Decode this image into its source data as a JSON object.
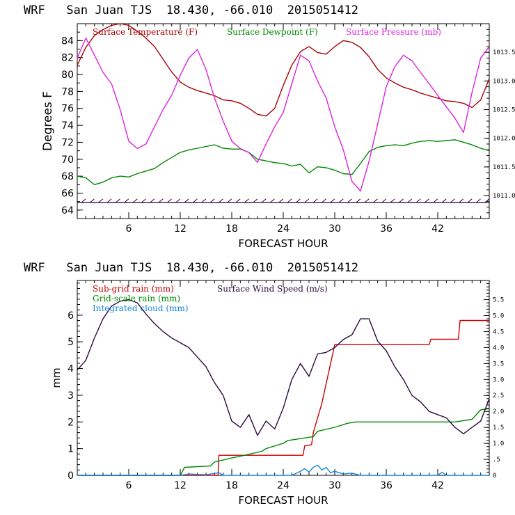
{
  "chart_data": [
    {
      "type": "line",
      "title": "WRF   San Juan TJS  18.430, -66.010  2015051412",
      "xlabel": "FORECAST HOUR",
      "ylabel": "Degrees F",
      "xlim": [
        0,
        48
      ],
      "ylim": [
        63,
        86
      ],
      "y2lim": [
        1010.6,
        1014.0
      ],
      "xticks": [
        6,
        12,
        18,
        24,
        30,
        36,
        42
      ],
      "yticks": [
        64,
        66,
        68,
        70,
        72,
        74,
        76,
        78,
        80,
        82,
        84
      ],
      "y2ticks": [
        "1011.0",
        "1011.5",
        "1012.0",
        "1012.5",
        "1013.0",
        "1013.5"
      ],
      "y2tick_values": [
        1011.0,
        1011.5,
        1012.0,
        1012.5,
        1013.0,
        1013.5
      ],
      "legend_position": "top",
      "grid": false,
      "series": [
        {
          "name": "Surface Temperature (F)",
          "color": "#aa0000",
          "axis": "left",
          "x": [
            0,
            1,
            2,
            3,
            4,
            5,
            6,
            7,
            8,
            9,
            10,
            11,
            12,
            13,
            14,
            15,
            16,
            17,
            18,
            19,
            20,
            21,
            22,
            23,
            24,
            25,
            26,
            27,
            28,
            29,
            30,
            31,
            32,
            33,
            34,
            35,
            36,
            37,
            38,
            39,
            40,
            41,
            42,
            43,
            44,
            45,
            46,
            47,
            48
          ],
          "values": [
            81.1,
            83.2,
            84.6,
            85.3,
            85.8,
            86.0,
            85.8,
            85.1,
            84.3,
            83.3,
            81.8,
            80.3,
            79.1,
            78.5,
            78.1,
            77.8,
            77.5,
            77.0,
            76.9,
            76.6,
            76.0,
            75.3,
            75.1,
            76.0,
            78.7,
            81.1,
            82.7,
            83.3,
            82.6,
            82.4,
            83.3,
            84.0,
            83.8,
            83.2,
            82.1,
            80.6,
            79.6,
            79.0,
            78.5,
            78.2,
            77.8,
            77.5,
            77.2,
            76.9,
            76.8,
            76.6,
            76.1,
            77.0,
            79.5
          ]
        },
        {
          "name": "Surface Dewpoint (F)",
          "color": "#008800",
          "axis": "left",
          "x": [
            0,
            1,
            2,
            3,
            4,
            5,
            6,
            7,
            8,
            9,
            10,
            11,
            12,
            13,
            14,
            15,
            16,
            17,
            18,
            19,
            20,
            21,
            22,
            23,
            24,
            25,
            26,
            27,
            28,
            29,
            30,
            31,
            32,
            33,
            34,
            35,
            36,
            37,
            38,
            39,
            40,
            41,
            42,
            43,
            44,
            45,
            46,
            47,
            48
          ],
          "values": [
            68.0,
            67.8,
            67.0,
            67.3,
            67.8,
            68.0,
            67.9,
            68.3,
            68.6,
            68.9,
            69.6,
            70.2,
            70.8,
            71.1,
            71.3,
            71.5,
            71.7,
            71.3,
            71.2,
            71.2,
            70.8,
            70.0,
            69.8,
            69.6,
            69.5,
            69.2,
            69.4,
            68.4,
            69.1,
            69.0,
            68.7,
            68.3,
            68.2,
            69.5,
            70.9,
            71.4,
            71.6,
            71.7,
            71.6,
            71.9,
            72.1,
            72.2,
            72.1,
            72.2,
            72.3,
            72.0,
            71.7,
            71.3,
            71.0
          ]
        },
        {
          "name": "Surface Pressure (mb)",
          "color": "#dd22dd",
          "axis": "right",
          "x": [
            0,
            1,
            2,
            3,
            4,
            5,
            6,
            7,
            8,
            9,
            10,
            11,
            12,
            13,
            14,
            15,
            16,
            17,
            18,
            19,
            20,
            21,
            22,
            23,
            24,
            25,
            26,
            27,
            28,
            29,
            30,
            31,
            32,
            33,
            34,
            35,
            36,
            37,
            38,
            39,
            40,
            41,
            42,
            43,
            44,
            45,
            46,
            47,
            48
          ],
          "values": [
            1013.4,
            1013.75,
            1013.45,
            1013.15,
            1012.95,
            1012.5,
            1011.95,
            1011.82,
            1011.9,
            1012.2,
            1012.5,
            1012.75,
            1013.1,
            1013.4,
            1013.55,
            1013.2,
            1012.7,
            1012.3,
            1011.95,
            1011.82,
            1011.75,
            1011.58,
            1011.9,
            1012.2,
            1012.45,
            1012.95,
            1013.45,
            1013.35,
            1013.0,
            1012.7,
            1012.2,
            1011.8,
            1011.25,
            1011.08,
            1011.6,
            1012.25,
            1012.9,
            1013.25,
            1013.45,
            1013.35,
            1013.15,
            1012.95,
            1012.75,
            1012.55,
            1012.35,
            1012.1,
            1012.8,
            1013.4,
            1013.6
          ]
        },
        {
          "name": "Wind barbs",
          "color": "#220033",
          "axis": "left",
          "x": [
            0,
            48
          ],
          "values": [
            64.9,
            64.9
          ]
        }
      ]
    },
    {
      "type": "line",
      "title": "WRF   San Juan TJS  18.430, -66.010  2015051412",
      "xlabel": "FORECAST HOUR",
      "ylabel": "mm",
      "xlim": [
        0,
        48
      ],
      "ylim": [
        0,
        7.3
      ],
      "y2lim": [
        0,
        6.1
      ],
      "xticks": [
        6,
        12,
        18,
        24,
        30,
        36,
        42
      ],
      "yticks": [
        0,
        1,
        2,
        3,
        4,
        5,
        6
      ],
      "y2ticks": [
        "0",
        ".5",
        "1.0",
        "1.5",
        "2.0",
        "2.5",
        "3.0",
        "3.5",
        "4.0",
        "4.5",
        "5.0",
        "5.5"
      ],
      "y2tick_values": [
        0,
        0.5,
        1.0,
        1.5,
        2.0,
        2.5,
        3.0,
        3.5,
        4.0,
        4.5,
        5.0,
        5.5
      ],
      "legend_position": "top-left",
      "grid": false,
      "series": [
        {
          "name": "Sub-grid rain (mm)",
          "color": "#cc0000",
          "axis": "left",
          "x": [
            0,
            16.4,
            16.5,
            26.3,
            26.5,
            27.3,
            27.5,
            28.5,
            30.0,
            41.0,
            41.2,
            44.4,
            44.6,
            48
          ],
          "values": [
            0,
            0,
            0.75,
            0.75,
            1.1,
            1.15,
            1.6,
            2.7,
            4.9,
            4.9,
            5.1,
            5.1,
            5.8,
            5.8
          ]
        },
        {
          "name": "Grid-scale rain (mm)",
          "color": "#008800",
          "axis": "left",
          "x": [
            0,
            12.0,
            12.5,
            15.5,
            16.0,
            18.0,
            19.5,
            21.5,
            22.0,
            24.0,
            24.5,
            27.5,
            28.0,
            30.0,
            31.5,
            32.5,
            44.0,
            46.0,
            47.0,
            48
          ],
          "values": [
            0,
            0,
            0.3,
            0.35,
            0.5,
            0.65,
            0.75,
            0.9,
            1.0,
            1.2,
            1.3,
            1.45,
            1.65,
            1.8,
            1.95,
            2.0,
            2.0,
            2.1,
            2.45,
            2.5
          ]
        },
        {
          "name": "Integrated cloud (mm)",
          "color": "#1188dd",
          "axis": "left",
          "x": [
            0,
            12.0,
            13.0,
            15.0,
            16.5,
            17.0,
            25.0,
            26.0,
            26.5,
            27.0,
            27.5,
            28.0,
            28.5,
            29.0,
            29.5,
            30.0,
            31.0,
            32.0,
            33.0,
            42.0,
            42.5,
            43.0,
            48
          ],
          "values": [
            0,
            0,
            0.05,
            0.02,
            0.1,
            0,
            0,
            0.15,
            0.25,
            0.12,
            0.3,
            0.38,
            0.2,
            0.3,
            0.1,
            0.15,
            0.05,
            0.08,
            0,
            0,
            0.12,
            0,
            0
          ]
        },
        {
          "name": "Surface Wind Speed (m/s)",
          "color": "#2a0a3a",
          "axis": "right",
          "x": [
            0,
            1,
            2,
            3,
            4,
            5,
            6,
            7,
            8,
            9,
            10,
            11,
            12,
            13,
            14,
            15,
            16,
            17,
            18,
            19,
            20,
            21,
            22,
            23,
            24,
            25,
            26,
            27,
            28,
            29,
            30,
            31,
            32,
            33,
            34,
            35,
            36,
            37,
            38,
            39,
            40,
            41,
            42,
            43,
            44,
            45,
            46,
            47,
            48
          ],
          "values": [
            3.3,
            3.6,
            4.3,
            4.9,
            5.3,
            5.45,
            5.5,
            5.4,
            5.05,
            4.75,
            4.5,
            4.3,
            4.15,
            4.0,
            3.7,
            3.4,
            2.9,
            2.5,
            1.7,
            1.5,
            1.9,
            1.25,
            1.7,
            1.45,
            2.1,
            3.0,
            3.5,
            3.1,
            3.8,
            3.85,
            4.0,
            4.25,
            4.4,
            4.9,
            4.9,
            4.2,
            3.9,
            3.4,
            3.0,
            2.5,
            2.3,
            2.0,
            1.9,
            1.8,
            1.5,
            1.3,
            1.5,
            1.7,
            2.4
          ]
        }
      ]
    }
  ]
}
